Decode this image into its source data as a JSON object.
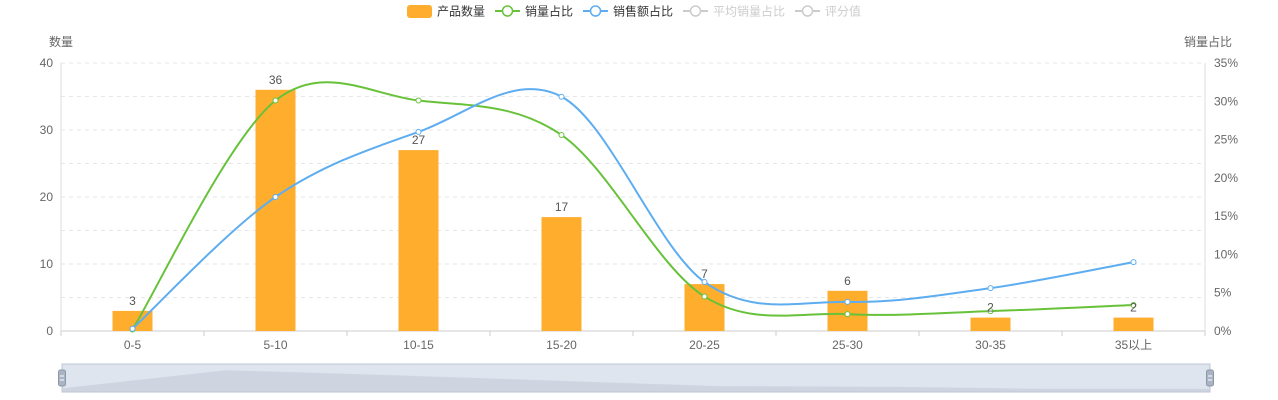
{
  "chart_data": {
    "type": "bar",
    "categories": [
      "0-5",
      "5-10",
      "10-15",
      "15-20",
      "20-25",
      "25-30",
      "30-35",
      "35以上"
    ],
    "left_axis": {
      "label": "数量",
      "min": 0,
      "max": 40,
      "ticks": [
        0,
        10,
        20,
        30,
        40
      ]
    },
    "right_axis": {
      "label": "销量占比",
      "min": 0,
      "max": 35,
      "ticks": [
        "0%",
        "5%",
        "10%",
        "15%",
        "20%",
        "25%",
        "30%",
        "35%"
      ]
    },
    "legend": {
      "position": "top-center",
      "items": [
        {
          "name": "产品数量",
          "kind": "bar",
          "color": "#ffad2d",
          "active": true
        },
        {
          "name": "销量占比",
          "kind": "line",
          "color": "#67c23a",
          "active": true
        },
        {
          "name": "销售额占比",
          "kind": "line",
          "color": "#5dadf0",
          "active": true
        },
        {
          "name": "平均销量占比",
          "kind": "line",
          "color": "#cccccc",
          "active": false
        },
        {
          "name": "评分值",
          "kind": "line",
          "color": "#cccccc",
          "active": false
        }
      ]
    },
    "series": [
      {
        "name": "产品数量",
        "type": "bar",
        "axis": "left",
        "color": "#ffad2d",
        "values": [
          3,
          36,
          27,
          17,
          7,
          6,
          2,
          2
        ]
      },
      {
        "name": "销量占比",
        "type": "line",
        "axis": "right",
        "color": "#67c23a",
        "values": [
          0.2,
          30.1,
          30.1,
          25.6,
          4.5,
          2.2,
          2.6,
          3.4
        ]
      },
      {
        "name": "销售额占比",
        "type": "line",
        "axis": "right",
        "color": "#5dadf0",
        "values": [
          0.3,
          17.5,
          26.0,
          30.6,
          6.4,
          3.8,
          5.6,
          9.0
        ]
      }
    ],
    "grid": "dashed-horizontal",
    "zoom_slider": true
  }
}
